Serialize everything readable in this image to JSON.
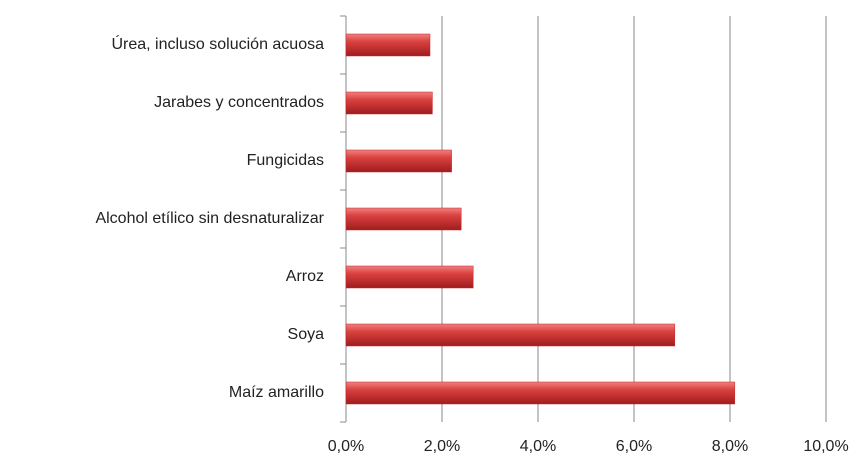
{
  "chart_data": {
    "type": "bar",
    "orientation": "horizontal",
    "categories": [
      "Úrea, incluso solución acuosa",
      "Jarabes y concentrados",
      "Fungicidas",
      "Alcohol etílico sin desnaturalizar",
      "Arroz",
      "Soya",
      "Maíz amarillo"
    ],
    "values": [
      1.75,
      1.8,
      2.2,
      2.4,
      2.65,
      6.85,
      8.1
    ],
    "color": "#c0282a",
    "xlim": [
      0,
      10
    ],
    "xticks": [
      {
        "value": 0,
        "label": "0,0%"
      },
      {
        "value": 2,
        "label": "2,0%"
      },
      {
        "value": 4,
        "label": "4,0%"
      },
      {
        "value": 6,
        "label": "6,0%"
      },
      {
        "value": 8,
        "label": "8,0%"
      },
      {
        "value": 10,
        "label": "10,0%"
      }
    ],
    "grid": true
  }
}
